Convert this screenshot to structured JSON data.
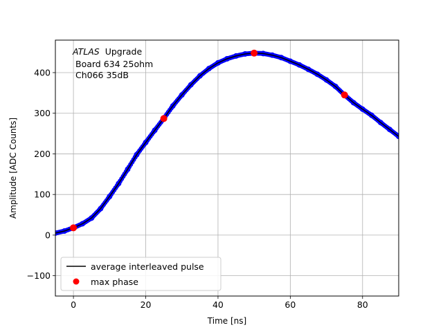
{
  "chart_data": {
    "type": "scatter",
    "title": "",
    "xlabel": "Time [ns]",
    "ylabel": "Amplitude [ADC Counts]",
    "xlim": [
      -5,
      90
    ],
    "ylim": [
      -150,
      480
    ],
    "xticks": [
      0,
      20,
      40,
      60,
      80
    ],
    "yticks": [
      -100,
      0,
      100,
      200,
      300,
      400
    ],
    "grid": true,
    "legend_position": "lower-left",
    "annotation": {
      "atlas": "ATLAS",
      "label": "Upgrade",
      "line2": "Board 634 25ohm",
      "line3": "Ch066 35dB"
    },
    "colors": {
      "samples": "#0000ff",
      "average": "#000000",
      "max_phase": "#ff0000",
      "grid": "#b0b0b0"
    },
    "series": [
      {
        "name": "",
        "kind": "samples",
        "x": [
          -5,
          -2.5,
          0,
          2.5,
          5,
          7.5,
          10,
          12.5,
          15,
          17.5,
          20,
          22.5,
          25,
          27.5,
          30,
          32.5,
          35,
          37.5,
          40,
          42.5,
          45,
          47.5,
          50,
          52.5,
          55,
          57.5,
          60,
          62.5,
          65,
          67.5,
          70,
          72.5,
          75,
          77.5,
          80,
          82.5,
          85,
          87.5,
          90
        ],
        "y": [
          5,
          10,
          18,
          28,
          42,
          65,
          95,
          127,
          162,
          198,
          228,
          258,
          287,
          318,
          345,
          370,
          392,
          410,
          424,
          434,
          441,
          446,
          448,
          447,
          443,
          437,
          428,
          419,
          408,
          396,
          382,
          366,
          345,
          326,
          310,
          295,
          277,
          260,
          243
        ]
      },
      {
        "name": "average interleaved pulse",
        "kind": "line",
        "x": [
          -5,
          -2.5,
          0,
          2.5,
          5,
          7.5,
          10,
          12.5,
          15,
          17.5,
          20,
          22.5,
          25,
          27.5,
          30,
          32.5,
          35,
          37.5,
          40,
          42.5,
          45,
          47.5,
          50,
          52.5,
          55,
          57.5,
          60,
          62.5,
          65,
          67.5,
          70,
          72.5,
          75,
          77.5,
          80,
          82.5,
          85,
          87.5,
          90
        ],
        "y": [
          5,
          10,
          18,
          28,
          42,
          65,
          95,
          127,
          162,
          198,
          228,
          258,
          287,
          318,
          345,
          370,
          392,
          410,
          424,
          434,
          441,
          446,
          448,
          447,
          443,
          437,
          428,
          419,
          408,
          396,
          382,
          366,
          345,
          326,
          310,
          295,
          277,
          260,
          243
        ]
      },
      {
        "name": "max phase",
        "kind": "markers",
        "x": [
          0,
          25,
          50,
          75
        ],
        "y": [
          18,
          287,
          448,
          345
        ]
      }
    ]
  }
}
